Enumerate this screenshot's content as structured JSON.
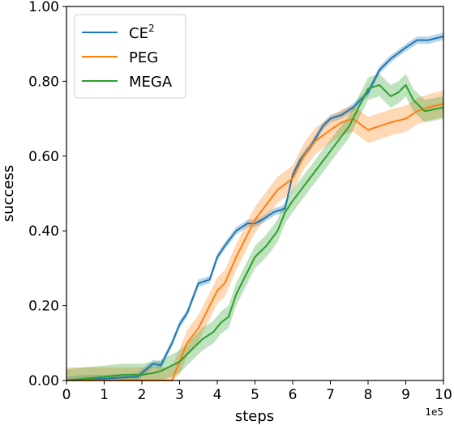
{
  "chart_data": {
    "type": "line",
    "xlabel": "steps",
    "ylabel": "success",
    "x_offset_label": "1e5",
    "xlim": [
      0,
      10
    ],
    "ylim": [
      0,
      1
    ],
    "x_ticks": [
      0,
      1,
      2,
      3,
      4,
      5,
      6,
      7,
      8,
      9,
      10
    ],
    "y_ticks": [
      0.0,
      0.2,
      0.4,
      0.6,
      0.8,
      1.0
    ],
    "y_tick_labels": [
      "0.00",
      "0.20",
      "0.40",
      "0.60",
      "0.80",
      "1.00"
    ],
    "grid": false,
    "legend_position": "top-left",
    "series": [
      {
        "name": "CE²",
        "name_base": "CE",
        "name_sup": "2",
        "color": "#1f77b4",
        "x": [
          0,
          0.5,
          1,
          1.5,
          1.9,
          2.0,
          2.3,
          2.5,
          2.8,
          3.0,
          3.2,
          3.5,
          3.8,
          4.0,
          4.2,
          4.5,
          4.8,
          5.0,
          5.2,
          5.5,
          5.8,
          6.0,
          6.2,
          6.5,
          6.8,
          7.0,
          7.3,
          7.6,
          8.0,
          8.3,
          8.6,
          9.0,
          9.3,
          9.6,
          10.0
        ],
        "y": [
          0.0,
          0.005,
          0.005,
          0.008,
          0.01,
          0.02,
          0.045,
          0.04,
          0.1,
          0.15,
          0.18,
          0.26,
          0.27,
          0.33,
          0.36,
          0.4,
          0.42,
          0.42,
          0.43,
          0.45,
          0.46,
          0.55,
          0.59,
          0.63,
          0.68,
          0.7,
          0.71,
          0.73,
          0.77,
          0.83,
          0.86,
          0.89,
          0.91,
          0.91,
          0.92
        ],
        "band": 0.01
      },
      {
        "name": "PEG",
        "color": "#ff7f0e",
        "x": [
          0,
          0.5,
          1,
          1.5,
          1.8,
          2.0,
          2.3,
          2.5,
          2.8,
          3.0,
          3.2,
          3.5,
          3.8,
          4.0,
          4.2,
          4.5,
          4.8,
          5.0,
          5.3,
          5.6,
          6.0,
          6.3,
          6.6,
          7.0,
          7.3,
          7.6,
          8.0,
          8.3,
          8.6,
          9.0,
          9.3,
          9.6,
          10.0
        ],
        "y": [
          0.0,
          0.0,
          0.0,
          0.0,
          0.0,
          0.0,
          0.0,
          0.0,
          0.0,
          0.05,
          0.1,
          0.14,
          0.2,
          0.24,
          0.26,
          0.33,
          0.39,
          0.43,
          0.47,
          0.51,
          0.54,
          0.6,
          0.64,
          0.67,
          0.69,
          0.7,
          0.67,
          0.68,
          0.69,
          0.7,
          0.72,
          0.73,
          0.74
        ],
        "band": 0.035
      },
      {
        "name": "MEGA",
        "color": "#2ca02c",
        "x": [
          0,
          0.5,
          1,
          1.5,
          2.0,
          2.3,
          2.5,
          2.8,
          3.0,
          3.3,
          3.6,
          3.9,
          4.1,
          4.3,
          4.5,
          4.8,
          5.0,
          5.3,
          5.6,
          5.8,
          6.0,
          6.3,
          6.6,
          6.9,
          7.2,
          7.5,
          7.8,
          8.0,
          8.3,
          8.6,
          8.8,
          9.0,
          9.2,
          9.5,
          10.0
        ],
        "y": [
          0.0,
          0.005,
          0.01,
          0.015,
          0.015,
          0.02,
          0.025,
          0.04,
          0.05,
          0.08,
          0.11,
          0.13,
          0.155,
          0.17,
          0.23,
          0.29,
          0.33,
          0.36,
          0.4,
          0.45,
          0.48,
          0.52,
          0.56,
          0.6,
          0.64,
          0.68,
          0.74,
          0.78,
          0.79,
          0.76,
          0.77,
          0.79,
          0.75,
          0.72,
          0.73
        ],
        "band": 0.03
      }
    ]
  }
}
